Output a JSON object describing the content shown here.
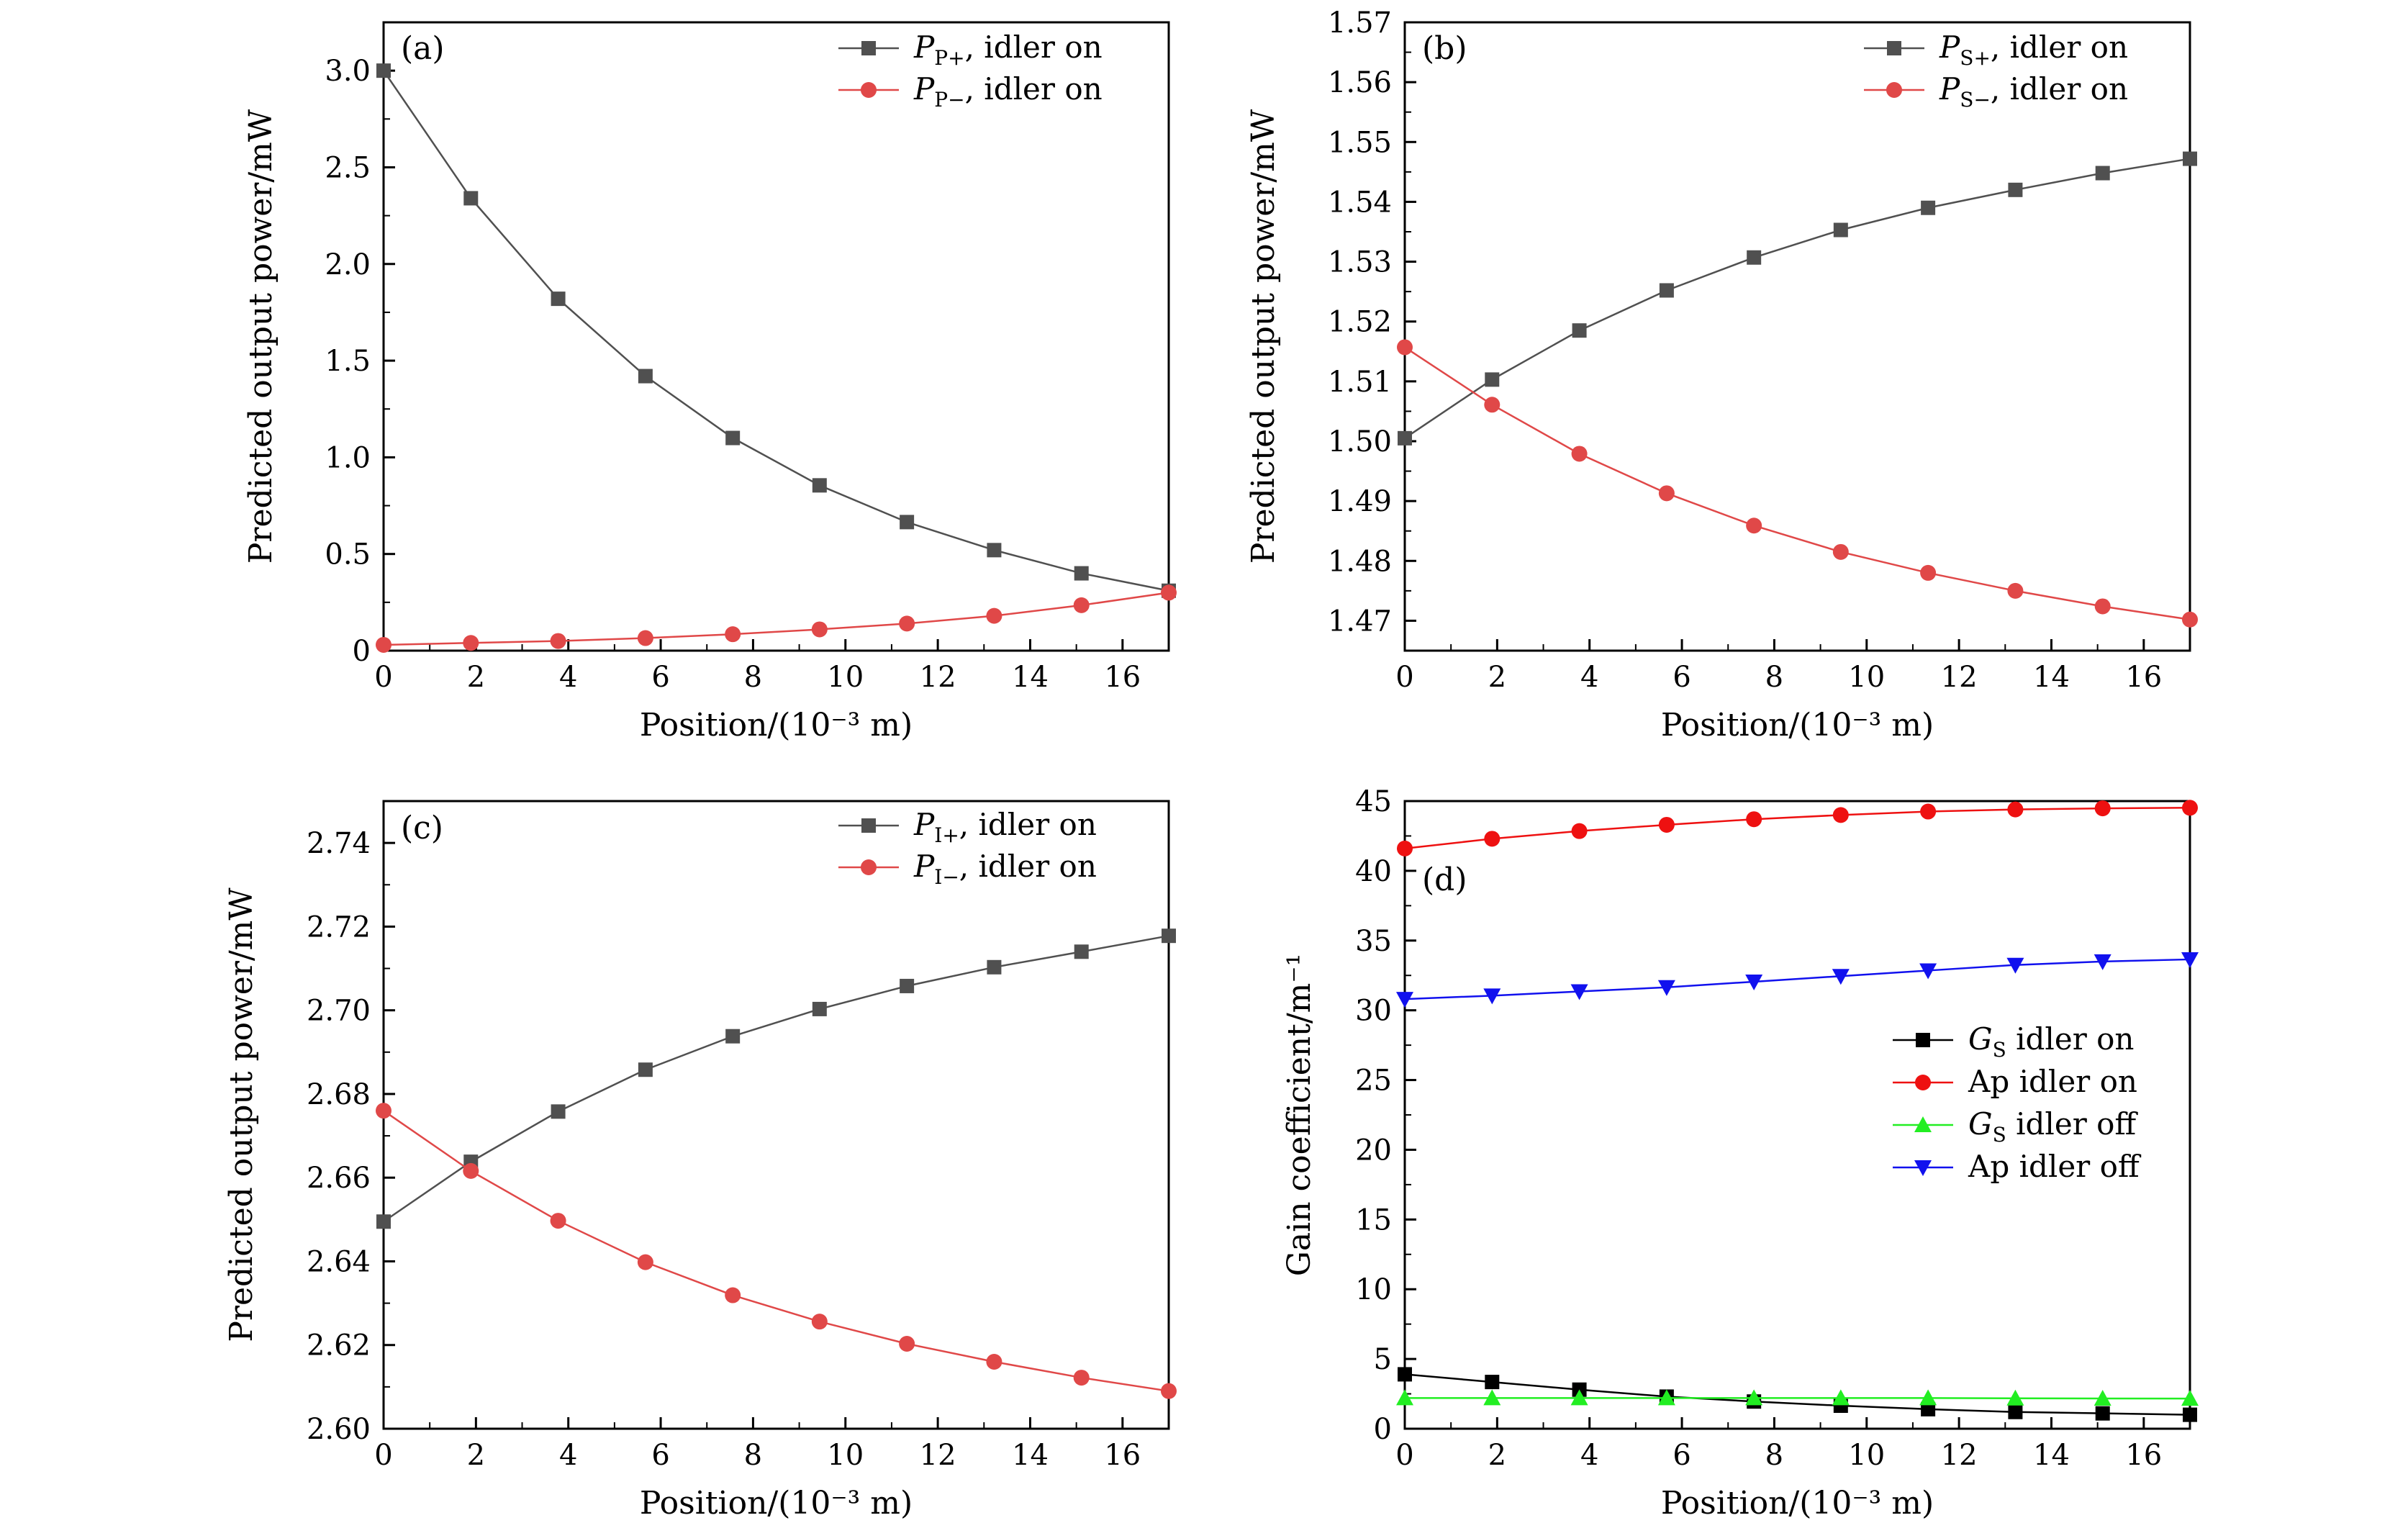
{
  "chart_data": [
    {
      "panel": "(a)",
      "type": "line",
      "xlabel": "Position/(10⁻³ m)",
      "ylabel": "Predicted output power/mW",
      "xlim": [
        0,
        17
      ],
      "ylim": [
        0,
        3.25
      ],
      "xticks": [
        "0",
        "2",
        "4",
        "6",
        "8",
        "10",
        "12",
        "14",
        "16"
      ],
      "yticks": [
        "0",
        "0.5",
        "1.0",
        "1.5",
        "2.0",
        "2.5",
        "3.0"
      ],
      "x": [
        0,
        1.89,
        3.78,
        5.67,
        7.56,
        9.44,
        11.33,
        13.22,
        15.11,
        17
      ],
      "series": [
        {
          "name": "P_P+, idler on",
          "sym": "P",
          "sub": "P+",
          "rest": ", idler on",
          "color": "#505050",
          "marker": "square",
          "values": [
            3.0,
            2.34,
            1.82,
            1.42,
            1.1,
            0.855,
            0.665,
            0.52,
            0.4,
            0.31
          ]
        },
        {
          "name": "P_P−, idler on",
          "sym": "P",
          "sub": "P−",
          "rest": ", idler on",
          "color": "#e04848",
          "marker": "circle",
          "values": [
            0.03,
            0.04,
            0.05,
            0.065,
            0.085,
            0.11,
            0.14,
            0.18,
            0.235,
            0.3
          ]
        }
      ]
    },
    {
      "panel": "(b)",
      "type": "line",
      "xlabel": "Position/(10⁻³ m)",
      "ylabel": "Predicted output power/mW",
      "xlim": [
        0,
        17
      ],
      "ylim": [
        1.465,
        1.57
      ],
      "xticks": [
        "0",
        "2",
        "4",
        "6",
        "8",
        "10",
        "12",
        "14",
        "16"
      ],
      "yticks": [
        "1.47",
        "1.48",
        "1.49",
        "1.50",
        "1.51",
        "1.52",
        "1.53",
        "1.54",
        "1.55",
        "1.56",
        "1.57"
      ],
      "x": [
        0,
        1.89,
        3.78,
        5.67,
        7.56,
        9.44,
        11.33,
        13.22,
        15.11,
        17
      ],
      "series": [
        {
          "name": "P_S+, idler on",
          "sym": "P",
          "sub": "S+",
          "rest": ", idler on",
          "color": "#505050",
          "marker": "square",
          "values": [
            1.5005,
            1.5103,
            1.5185,
            1.5252,
            1.5307,
            1.5353,
            1.539,
            1.542,
            1.5448,
            1.5472
          ]
        },
        {
          "name": "P_S−, idler on",
          "sym": "P",
          "sub": "S−",
          "rest": ", idler on",
          "color": "#e04848",
          "marker": "circle",
          "values": [
            1.5157,
            1.5061,
            1.4979,
            1.4913,
            1.4859,
            1.4815,
            1.478,
            1.475,
            1.4724,
            1.4702
          ]
        }
      ]
    },
    {
      "panel": "(c)",
      "type": "line",
      "xlabel": "Position/(10⁻³ m)",
      "ylabel": "Predicted output power/mW",
      "xlim": [
        0,
        17
      ],
      "ylim": [
        2.6,
        2.75
      ],
      "xticks": [
        "0",
        "2",
        "4",
        "6",
        "8",
        "10",
        "12",
        "14",
        "16"
      ],
      "yticks": [
        "2.60",
        "2.62",
        "2.64",
        "2.66",
        "2.68",
        "2.70",
        "2.72",
        "2.74"
      ],
      "x": [
        0,
        1.89,
        3.78,
        5.67,
        7.56,
        9.44,
        11.33,
        13.22,
        15.11,
        17
      ],
      "series": [
        {
          "name": "P_I+, idler on",
          "sym": "P",
          "sub": "I+",
          "rest": ", idler on",
          "color": "#505050",
          "marker": "square",
          "values": [
            2.6495,
            2.6638,
            2.6758,
            2.6858,
            2.6938,
            2.7003,
            2.7058,
            2.7103,
            2.714,
            2.7178
          ]
        },
        {
          "name": "P_I−, idler on",
          "sym": "P",
          "sub": "I−",
          "rest": ", idler on",
          "color": "#e04848",
          "marker": "circle",
          "values": [
            2.676,
            2.6616,
            2.6497,
            2.6398,
            2.6319,
            2.6256,
            2.6203,
            2.616,
            2.6122,
            2.609
          ]
        }
      ]
    },
    {
      "panel": "(d)",
      "type": "line",
      "xlabel": "Position/(10⁻³ m)",
      "ylabel": "Gain coefficient/m⁻¹",
      "xlim": [
        0,
        17
      ],
      "ylim": [
        0,
        45
      ],
      "xticks": [
        "0",
        "2",
        "4",
        "6",
        "8",
        "10",
        "12",
        "14",
        "16"
      ],
      "yticks": [
        "0",
        "5",
        "10",
        "15",
        "20",
        "25",
        "30",
        "35",
        "40",
        "45"
      ],
      "x": [
        0,
        1.89,
        3.78,
        5.67,
        7.56,
        9.44,
        11.33,
        13.22,
        15.11,
        17
      ],
      "series": [
        {
          "name": "G_S idler on",
          "sym": "G",
          "sub": "S",
          "rest": " idler on",
          "color": "#000000",
          "line": "#000000",
          "marker": "square",
          "values": [
            3.9,
            3.35,
            2.8,
            2.3,
            1.95,
            1.65,
            1.4,
            1.2,
            1.1,
            1.0
          ]
        },
        {
          "name": "Ap idler on",
          "sym": "",
          "sub": "",
          "rest": "Ap idler on",
          "color": "#ee1111",
          "line": "#ee1111",
          "marker": "circle",
          "values": [
            41.6,
            42.3,
            42.85,
            43.3,
            43.7,
            44.0,
            44.25,
            44.4,
            44.48,
            44.52
          ]
        },
        {
          "name": "G_S idler off",
          "sym": "G",
          "sub": "S",
          "rest": " idler off",
          "color": "#22ee22",
          "line": "#22ee22",
          "marker": "triangle-up",
          "values": [
            2.2,
            2.2,
            2.2,
            2.2,
            2.2,
            2.2,
            2.2,
            2.18,
            2.17,
            2.16
          ]
        },
        {
          "name": "Ap idler off",
          "sym": "",
          "sub": "",
          "rest": "Ap idler off",
          "color": "#1111ee",
          "line": "#1111ee",
          "marker": "triangle-down",
          "values": [
            30.8,
            31.05,
            31.35,
            31.65,
            32.05,
            32.45,
            32.85,
            33.25,
            33.5,
            33.65
          ]
        }
      ]
    }
  ]
}
